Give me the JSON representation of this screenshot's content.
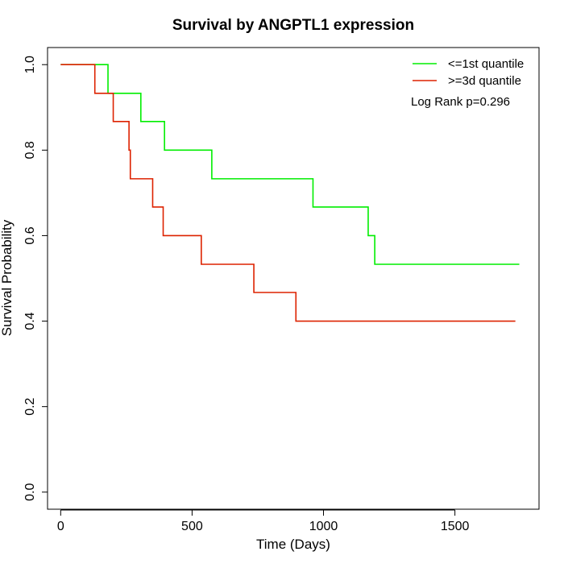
{
  "chart_data": {
    "type": "line",
    "subtype": "kaplan-meier step",
    "title": "Survival by ANGPTL1 expression",
    "xlabel": "Time (Days)",
    "ylabel": "Survival Probability",
    "xlim": [
      -50,
      1820
    ],
    "ylim": [
      -0.04,
      1.04
    ],
    "xticks": [
      0,
      500,
      1000,
      1500
    ],
    "xtick_labels": [
      "0",
      "500",
      "1000",
      "1500"
    ],
    "yticks": [
      0.0,
      0.2,
      0.4,
      0.6,
      0.8,
      1.0
    ],
    "ytick_labels": [
      "0.0",
      "0.2",
      "0.4",
      "0.6",
      "0.8",
      "1.0"
    ],
    "grid": false,
    "legend_position": "top-right",
    "annotation": "Log Rank p=0.296",
    "series": [
      {
        "name": "<=1st quantile",
        "color": "#00ee00",
        "steps": [
          [
            0,
            1.0
          ],
          [
            180,
            0.933
          ],
          [
            305,
            0.867
          ],
          [
            395,
            0.8
          ],
          [
            575,
            0.733
          ],
          [
            960,
            0.667
          ],
          [
            1170,
            0.6
          ],
          [
            1195,
            0.533
          ],
          [
            1745,
            0.533
          ]
        ]
      },
      {
        "name": ">=3d quantile",
        "color": "#dd2200",
        "steps": [
          [
            0,
            1.0
          ],
          [
            130,
            0.933
          ],
          [
            200,
            0.867
          ],
          [
            260,
            0.8
          ],
          [
            265,
            0.733
          ],
          [
            350,
            0.667
          ],
          [
            390,
            0.6
          ],
          [
            535,
            0.533
          ],
          [
            735,
            0.467
          ],
          [
            895,
            0.4
          ],
          [
            1730,
            0.4
          ]
        ]
      }
    ]
  }
}
